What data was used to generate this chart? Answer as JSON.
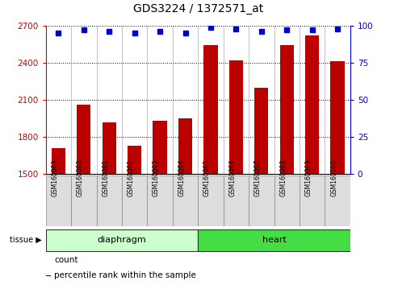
{
  "title": "GDS3224 / 1372571_at",
  "samples": [
    "GSM160089",
    "GSM160090",
    "GSM160091",
    "GSM160092",
    "GSM160093",
    "GSM160094",
    "GSM160095",
    "GSM160096",
    "GSM160097",
    "GSM160098",
    "GSM160099",
    "GSM160100"
  ],
  "counts": [
    1710,
    2060,
    1920,
    1730,
    1930,
    1950,
    2540,
    2420,
    2200,
    2540,
    2620,
    2410
  ],
  "percentiles": [
    95,
    97,
    96,
    95,
    96,
    95,
    99,
    98,
    96,
    97,
    97,
    98
  ],
  "ylim_left": [
    1500,
    2700
  ],
  "ylim_right": [
    0,
    100
  ],
  "yticks_left": [
    1500,
    1800,
    2100,
    2400,
    2700
  ],
  "yticks_right": [
    0,
    25,
    50,
    75,
    100
  ],
  "bar_color": "#bb0000",
  "dot_color": "#0000cc",
  "tissue_groups": [
    {
      "label": "diaphragm",
      "start": 0,
      "end": 6,
      "color": "#ccffcc"
    },
    {
      "label": "heart",
      "start": 6,
      "end": 12,
      "color": "#44dd44"
    }
  ],
  "tissue_label": "tissue",
  "legend_count": "count",
  "legend_percentile": "percentile rank within the sample",
  "background_color": "#ffffff",
  "plot_bg": "#ffffff",
  "axis_left_color": "#cc0000",
  "axis_right_color": "#0000cc",
  "tick_bg_color": "#dddddd",
  "grid_color": "#000000"
}
